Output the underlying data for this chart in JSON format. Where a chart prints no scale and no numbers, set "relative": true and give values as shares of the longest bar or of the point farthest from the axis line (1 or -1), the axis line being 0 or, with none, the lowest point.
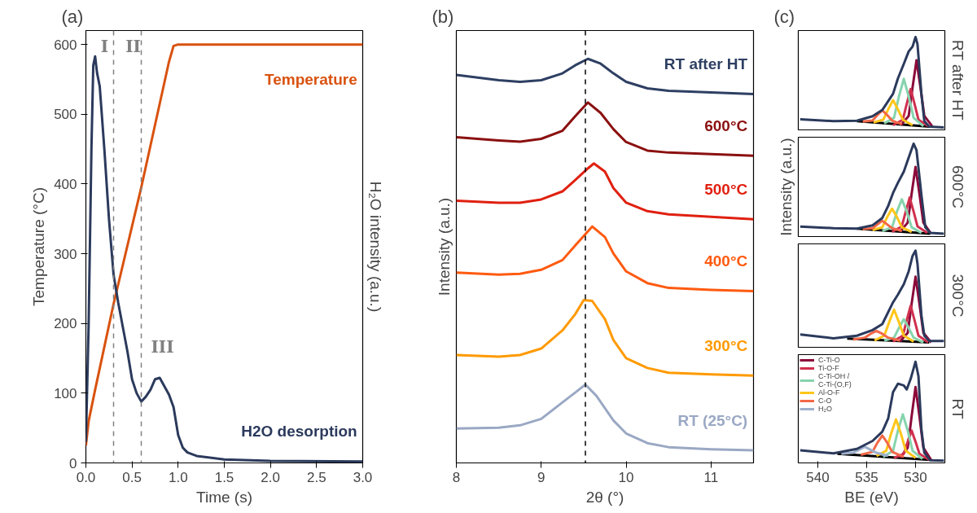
{
  "chart_data": [
    {
      "type": "line",
      "title": "(a)",
      "xlabel": "Time (s)",
      "ylabel": "Temperature (°C)",
      "y2label": "H₂O intensity (a.u.)",
      "xlim": [
        0,
        3
      ],
      "ylim": [
        0,
        620
      ],
      "xticks": [
        {
          "value": 0,
          "label": "0.0"
        },
        0.5,
        {
          "value": 1,
          "label": "1.0"
        },
        1.5,
        {
          "value": 2,
          "label": "2.0"
        },
        2.5,
        {
          "value": 3,
          "label": "3.0"
        }
      ],
      "yticks": [
        0,
        100,
        200,
        300,
        400,
        500,
        600
      ],
      "ref_lines": [
        {
          "axis": "x",
          "value": 0.3,
          "color": "#808080",
          "line_style": "dashed"
        },
        {
          "axis": "x",
          "value": 0.6,
          "color": "#808080",
          "line_style": "dashed"
        }
      ],
      "annotations": [
        "I",
        "II",
        "III"
      ],
      "series": [
        {
          "name": "Temperature",
          "color": "#d9520f",
          "x": [
            0,
            0.03,
            0.1,
            0.3,
            0.6,
            0.9,
            0.95,
            1.0,
            3.0
          ],
          "values": [
            25,
            60,
            105,
            228,
            395,
            575,
            598,
            600,
            600
          ]
        },
        {
          "name": "H2O desorption",
          "color": "#2b3a5c",
          "x": [
            0,
            0.03,
            0.06,
            0.08,
            0.1,
            0.12,
            0.15,
            0.2,
            0.25,
            0.3,
            0.35,
            0.4,
            0.45,
            0.5,
            0.55,
            0.6,
            0.65,
            0.7,
            0.75,
            0.8,
            0.85,
            0.9,
            0.95,
            1.0,
            1.05,
            1.1,
            1.2,
            1.5,
            2.0,
            3.0
          ],
          "values": [
            30,
            200,
            450,
            570,
            583,
            560,
            540,
            450,
            350,
            270,
            230,
            195,
            160,
            120,
            100,
            88,
            95,
            105,
            120,
            122,
            110,
            98,
            80,
            40,
            22,
            15,
            10,
            5,
            3,
            2
          ]
        }
      ]
    },
    {
      "type": "line",
      "title": "(b)",
      "xlabel": "2θ (°)",
      "ylabel": "Intensity (a.u.)",
      "relative": true,
      "xlim": [
        8,
        11.5
      ],
      "xticks": [
        8,
        9,
        10,
        11
      ],
      "ref_lines": [
        {
          "axis": "x",
          "value": 9.52,
          "color": "#000000",
          "line_style": "dashed"
        }
      ],
      "series": [
        {
          "name": "RT after HT",
          "color": "#2e3f63",
          "x": [
            8,
            8.5,
            8.75,
            9,
            9.25,
            9.4,
            9.55,
            9.7,
            9.85,
            10,
            10.25,
            10.5,
            11,
            11.5
          ],
          "values": [
            0.96,
            0.947,
            0.943,
            0.947,
            0.964,
            0.984,
            1.0,
            0.988,
            0.964,
            0.943,
            0.927,
            0.921,
            0.917,
            0.913
          ]
        },
        {
          "name": "600°C",
          "color": "#8b1010",
          "x": [
            8,
            8.5,
            8.75,
            9,
            9.25,
            9.4,
            9.55,
            9.7,
            9.85,
            10,
            10.25,
            10.5,
            11,
            11.5
          ],
          "values": [
            0.806,
            0.798,
            0.795,
            0.802,
            0.822,
            0.858,
            0.892,
            0.866,
            0.826,
            0.794,
            0.773,
            0.768,
            0.764,
            0.76
          ]
        },
        {
          "name": "500°C",
          "color": "#e02010",
          "x": [
            8,
            8.5,
            8.75,
            9,
            9.25,
            9.4,
            9.55,
            9.62,
            9.75,
            9.85,
            10,
            10.25,
            10.5,
            11,
            11.5
          ],
          "values": [
            0.649,
            0.644,
            0.644,
            0.652,
            0.672,
            0.7,
            0.729,
            0.741,
            0.721,
            0.68,
            0.644,
            0.623,
            0.615,
            0.609,
            0.603
          ]
        },
        {
          "name": "400°C",
          "color": "#ff5a10",
          "x": [
            8,
            8.5,
            8.75,
            9,
            9.25,
            9.4,
            9.6,
            9.75,
            9.85,
            10,
            10.25,
            10.5,
            11,
            11.5
          ],
          "values": [
            0.471,
            0.466,
            0.468,
            0.478,
            0.502,
            0.538,
            0.585,
            0.559,
            0.518,
            0.474,
            0.445,
            0.433,
            0.428,
            0.425
          ]
        },
        {
          "name": "300°C",
          "color": "#ff9a00",
          "x": [
            8,
            8.5,
            8.75,
            9,
            9.25,
            9.4,
            9.5,
            9.6,
            9.75,
            9.85,
            10,
            10.25,
            10.5,
            11,
            11.5
          ],
          "values": [
            0.267,
            0.263,
            0.267,
            0.283,
            0.328,
            0.368,
            0.403,
            0.401,
            0.356,
            0.304,
            0.259,
            0.235,
            0.223,
            0.219,
            0.216
          ]
        },
        {
          "name": "RT (25°C)",
          "color": "#9aa8c4",
          "x": [
            8,
            8.5,
            8.75,
            9,
            9.25,
            9.4,
            9.52,
            9.65,
            9.85,
            10,
            10.25,
            10.5,
            11,
            11.5
          ],
          "values": [
            0.085,
            0.087,
            0.093,
            0.109,
            0.15,
            0.174,
            0.194,
            0.166,
            0.105,
            0.073,
            0.049,
            0.039,
            0.034,
            0.031
          ]
        }
      ]
    },
    {
      "type": "line",
      "title": "(c)",
      "y2label": "RT after HT",
      "relative": true,
      "tick_labels": false,
      "xlim": [
        542,
        527
      ],
      "xticks": [
        540,
        535,
        530
      ],
      "series": [
        {
          "color": "#000000",
          "x": [
            536,
            528.6
          ],
          "values": [
            0.094,
            0.035
          ]
        },
        {
          "color": "#8b0a3a",
          "x": [
            531.5,
            530.7,
            530.3,
            529.9,
            529.5,
            529.1,
            528.3
          ],
          "values": [
            0.05,
            0.15,
            0.46,
            0.75,
            0.46,
            0.15,
            0.04
          ]
        },
        {
          "color": "#d0304e",
          "x": [
            532.3,
            531.3,
            530.9,
            530.5,
            530.1,
            529.7,
            528.7
          ],
          "values": [
            0.05,
            0.11,
            0.28,
            0.44,
            0.28,
            0.11,
            0.04
          ]
        },
        {
          "color": "#86d4ad",
          "x": [
            533.2,
            532.2,
            531.7,
            531.2,
            530.7,
            530.2,
            529.2
          ],
          "values": [
            0.07,
            0.13,
            0.36,
            0.55,
            0.36,
            0.13,
            0.04
          ]
        },
        {
          "color": "#ffc61a",
          "x": [
            534.3,
            533.3,
            532.8,
            532.3,
            531.8,
            531.3,
            530.3
          ],
          "values": [
            0.08,
            0.11,
            0.22,
            0.32,
            0.22,
            0.11,
            0.05
          ]
        },
        {
          "color": "#f26848",
          "x": [
            535.4,
            534.4,
            533.9,
            533.4,
            532.9,
            532.4,
            531.4
          ],
          "values": [
            0.09,
            0.1,
            0.16,
            0.21,
            0.16,
            0.1,
            0.06
          ]
        },
        {
          "color": "#2b3a5c",
          "x": [
            541.8,
            538.4,
            536,
            534.4,
            533.4,
            532.3,
            531.8,
            531.2,
            530.7,
            530.3,
            530,
            529.8,
            529.4,
            529.1,
            528.6,
            527.1
          ],
          "values": [
            0.115,
            0.094,
            0.099,
            0.147,
            0.214,
            0.389,
            0.555,
            0.71,
            0.845,
            0.898,
            1.0,
            0.925,
            0.389,
            0.094,
            0.035,
            0.027
          ]
        }
      ]
    },
    {
      "type": "line",
      "ylabel": "Intensity (a.u.)",
      "y2label": "600°C",
      "relative": true,
      "tick_labels": false,
      "xlim": [
        542,
        527
      ],
      "xticks": [
        540,
        535,
        530
      ],
      "series": [
        {
          "color": "#000000",
          "x": [
            536,
            528.5
          ],
          "values": [
            0.085,
            0.03
          ]
        },
        {
          "color": "#8b0a3a",
          "x": [
            531.6,
            530.8,
            530.4,
            530.0,
            529.6,
            529.2,
            528.4
          ],
          "values": [
            0.05,
            0.15,
            0.46,
            0.75,
            0.46,
            0.15,
            0.03
          ]
        },
        {
          "color": "#d0304e",
          "x": [
            532.4,
            531.4,
            531.0,
            530.6,
            530.2,
            529.8,
            528.8
          ],
          "values": [
            0.05,
            0.11,
            0.27,
            0.42,
            0.27,
            0.11,
            0.04
          ]
        },
        {
          "color": "#86d4ad",
          "x": [
            533.4,
            532.4,
            531.9,
            531.4,
            530.9,
            530.4,
            529.4
          ],
          "values": [
            0.06,
            0.1,
            0.27,
            0.4,
            0.27,
            0.1,
            0.04
          ]
        },
        {
          "color": "#ffc61a",
          "x": [
            534.4,
            533.4,
            532.9,
            532.4,
            531.9,
            531.4,
            530.4
          ],
          "values": [
            0.07,
            0.1,
            0.21,
            0.3,
            0.21,
            0.1,
            0.05
          ]
        },
        {
          "color": "#f26848",
          "x": [
            535.4,
            534.4,
            533.9,
            533.4,
            532.9,
            532.4,
            531.4
          ],
          "values": [
            0.08,
            0.09,
            0.13,
            0.17,
            0.13,
            0.09,
            0.06
          ]
        },
        {
          "color": "#2b3a5c",
          "x": [
            541.8,
            538.4,
            536,
            534.4,
            533.4,
            532.8,
            532.3,
            531.8,
            531.2,
            530.7,
            530.2,
            529.9,
            529.4,
            529.0,
            528.5,
            527.1
          ],
          "values": [
            0.107,
            0.09,
            0.085,
            0.12,
            0.2,
            0.33,
            0.47,
            0.58,
            0.7,
            0.85,
            1.0,
            0.93,
            0.45,
            0.1,
            0.04,
            0.03
          ]
        }
      ]
    },
    {
      "type": "line",
      "y2label": "300°C",
      "relative": true,
      "tick_labels": false,
      "xlim": [
        542,
        527
      ],
      "xticks": [
        540,
        535,
        530
      ],
      "series": [
        {
          "color": "#000000",
          "x": [
            537,
            528.6
          ],
          "values": [
            0.09,
            0.05
          ]
        },
        {
          "color": "#8b0a3a",
          "x": [
            531.6,
            530.8,
            530.4,
            530.0,
            529.6,
            529.2,
            528.4
          ],
          "values": [
            0.06,
            0.15,
            0.45,
            0.73,
            0.45,
            0.15,
            0.05
          ]
        },
        {
          "color": "#d0304e",
          "x": [
            532.3,
            531.3,
            530.9,
            530.5,
            530.1,
            529.7,
            528.7
          ],
          "values": [
            0.06,
            0.12,
            0.28,
            0.43,
            0.28,
            0.12,
            0.05
          ]
        },
        {
          "color": "#86d4ad",
          "x": [
            533.2,
            532.2,
            531.7,
            531.2,
            530.7,
            530.2,
            529.2
          ],
          "values": [
            0.07,
            0.1,
            0.2,
            0.29,
            0.2,
            0.1,
            0.05
          ]
        },
        {
          "color": "#ffc61a",
          "x": [
            534.2,
            533.2,
            532.7,
            532.2,
            531.7,
            531.2,
            530.2
          ],
          "values": [
            0.07,
            0.12,
            0.26,
            0.39,
            0.26,
            0.12,
            0.06
          ]
        },
        {
          "color": "#f26848",
          "x": [
            536.4,
            535.2,
            534.6,
            534.0,
            533.4,
            532.8,
            531.6
          ],
          "values": [
            0.08,
            0.1,
            0.14,
            0.17,
            0.14,
            0.1,
            0.07
          ]
        },
        {
          "color": "#2b3a5c",
          "x": [
            541.8,
            538.4,
            536,
            534.4,
            533.4,
            532.3,
            531.8,
            531.2,
            530.7,
            530.3,
            530,
            529.8,
            529.4,
            529.1,
            528.6,
            527.1
          ],
          "values": [
            0.133,
            0.093,
            0.12,
            0.178,
            0.24,
            0.466,
            0.546,
            0.653,
            0.786,
            0.946,
            1.0,
            0.866,
            0.333,
            0.12,
            0.066,
            0.066
          ]
        }
      ]
    },
    {
      "type": "line",
      "xlabel": "BE (eV)",
      "y2label": "RT",
      "relative": true,
      "tick_labels": "x",
      "legend": "top left",
      "xlim": [
        542,
        527
      ],
      "xticks": [
        540,
        535,
        530
      ],
      "series": [
        {
          "color": "#000000",
          "x": [
            538,
            528.5
          ],
          "values": [
            0.09,
            0.03
          ]
        },
        {
          "name": "C-Ti-O",
          "color": "#8b0a3a",
          "x": [
            531.6,
            530.8,
            530.4,
            530.0,
            529.6,
            529.2,
            528.4
          ],
          "values": [
            0.05,
            0.15,
            0.46,
            0.75,
            0.46,
            0.15,
            0.03
          ]
        },
        {
          "name": "Ti-O-F",
          "color": "#d0304e",
          "x": [
            532.2,
            531.2,
            530.8,
            530.4,
            530.0,
            529.6,
            528.6
          ],
          "values": [
            0.05,
            0.09,
            0.21,
            0.32,
            0.21,
            0.09,
            0.03
          ]
        },
        {
          "name": "C-Ti-OH /\nC-Ti-(O,F)",
          "color": "#86d4ad",
          "x": [
            533.3,
            532.3,
            531.8,
            531.3,
            530.8,
            530.3,
            529.3
          ],
          "values": [
            0.06,
            0.12,
            0.32,
            0.48,
            0.32,
            0.12,
            0.04
          ]
        },
        {
          "name": "Al-O-F",
          "color": "#ffc61a",
          "x": [
            534.0,
            533.0,
            532.5,
            532.0,
            531.5,
            531.0,
            530.0
          ],
          "values": [
            0.07,
            0.12,
            0.29,
            0.43,
            0.29,
            0.12,
            0.05
          ]
        },
        {
          "name": "C-O",
          "color": "#f26848",
          "x": [
            535.6,
            534.4,
            533.9,
            533.4,
            532.9,
            532.4,
            531.2
          ],
          "values": [
            0.08,
            0.11,
            0.2,
            0.27,
            0.2,
            0.11,
            0.06
          ]
        },
        {
          "name": "H₂O",
          "color": "#9fb0cc",
          "x": [
            537.6,
            536.4,
            535.8,
            535.2,
            534.6,
            534.0,
            532.8
          ],
          "values": [
            0.09,
            0.1,
            0.13,
            0.16,
            0.13,
            0.1,
            0.07
          ]
        },
        {
          "color": "#2b3a5c",
          "x": [
            541.8,
            538.4,
            536,
            534.4,
            533.4,
            532.8,
            532.3,
            531.8,
            531.2,
            530.9,
            530.5,
            530,
            529.7,
            529.4,
            529.1,
            528.5,
            527.1
          ],
          "values": [
            0.125,
            0.094,
            0.139,
            0.217,
            0.309,
            0.439,
            0.7,
            0.783,
            0.765,
            0.726,
            0.83,
            1.0,
            0.857,
            0.334,
            0.1,
            0.027,
            0.022
          ]
        }
      ]
    }
  ]
}
